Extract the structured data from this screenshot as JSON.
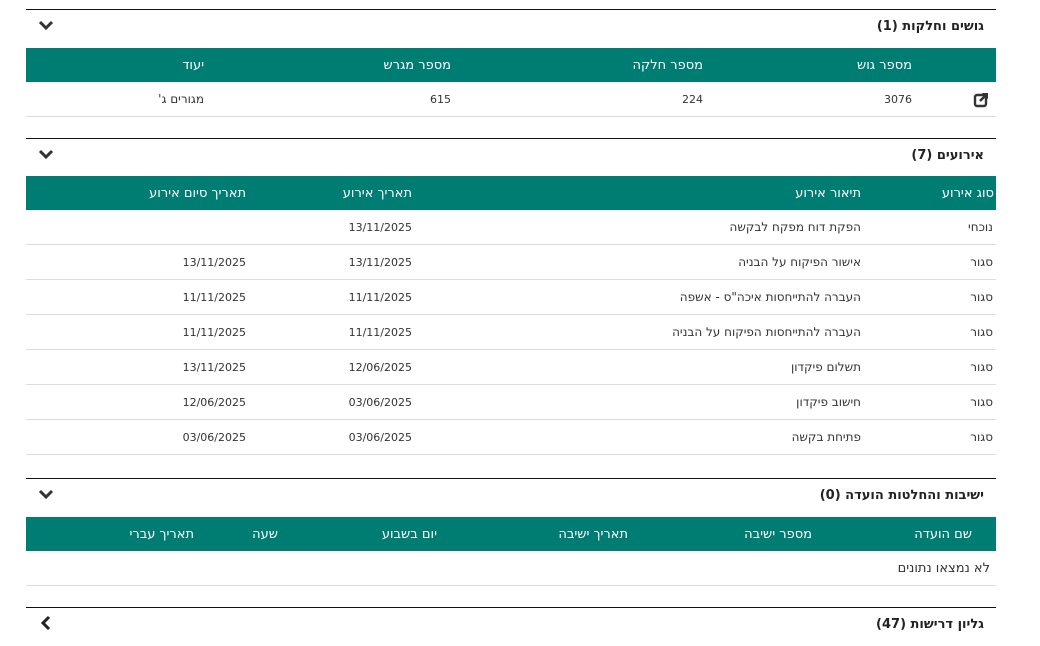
{
  "colors": {
    "header_bg": "#007d73",
    "header_text": "#ffffff"
  },
  "parcels": {
    "title": "גושים וחלקות (1)",
    "toggle_icon": "chevron-down-icon",
    "columns": [
      "",
      "מספר גוש",
      "מספר חלקה",
      "מספר מגרש",
      "יעוד"
    ],
    "rows": [
      {
        "icon": "external-link-icon",
        "gush": "3076",
        "helka": "224",
        "migrash": "615",
        "yiud": "מגורים ג'"
      }
    ]
  },
  "events": {
    "title": "אירועים (7)",
    "toggle_icon": "chevron-down-icon",
    "columns": [
      "סוג אירוע",
      "תיאור אירוע",
      "תאריך אירוע",
      "תאריך סיום אירוע"
    ],
    "rows": [
      [
        "נוכחי",
        "הפקת דוח מפקח לבקשה",
        "13/11/2025",
        ""
      ],
      [
        "סגור",
        "אישור הפיקוח על הבניה",
        "13/11/2025",
        "13/11/2025"
      ],
      [
        "סגור",
        "העברה להתייחסות איכה\"ס - אשפה",
        "11/11/2025",
        "11/11/2025"
      ],
      [
        "סגור",
        "העברה להתייחסות הפיקוח על הבניה",
        "11/11/2025",
        "11/11/2025"
      ],
      [
        "סגור",
        "תשלום פיקדון",
        "12/06/2025",
        "13/11/2025"
      ],
      [
        "סגור",
        "חישוב פיקדון",
        "03/06/2025",
        "12/06/2025"
      ],
      [
        "סגור",
        "פתיחת בקשה",
        "03/06/2025",
        "03/06/2025"
      ]
    ]
  },
  "meetings": {
    "title": "ישיבות והחלטות הועדה (0)",
    "toggle_icon": "chevron-down-icon",
    "columns": [
      "שם הועדה",
      "מספר ישיבה",
      "תאריך ישיבה",
      "יום בשבוע",
      "שעה",
      "תאריך עברי"
    ],
    "empty_text": "לא נמצאו נתונים"
  },
  "requirements": {
    "title": "גליון דרישות (47)",
    "toggle_icon": "chevron-left-icon"
  }
}
